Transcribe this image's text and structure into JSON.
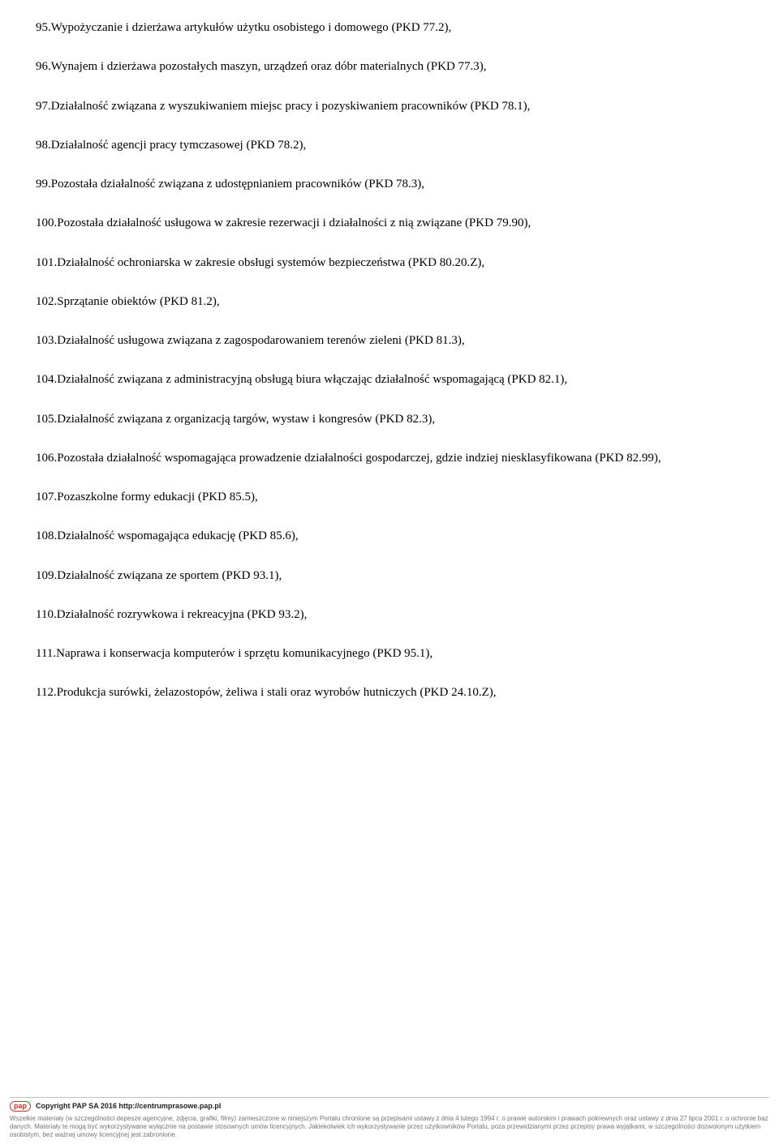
{
  "items": [
    "95.Wypożyczanie i dzierżawa artykułów użytku osobistego i domowego (PKD 77.2),",
    "96.Wynajem i dzierżawa pozostałych maszyn, urządzeń oraz dóbr materialnych (PKD 77.3),",
    "97.Działalność związana z wyszukiwaniem miejsc pracy i pozyskiwaniem pracowników (PKD 78.1),",
    "98.Działalność agencji pracy tymczasowej (PKD 78.2),",
    "99.Pozostała działalność związana z udostępnianiem pracowników (PKD 78.3),",
    "100.Pozostała działalność usługowa w zakresie rezerwacji i działalności z nią związane (PKD 79.90),",
    "101.Działalność ochroniarska w zakresie obsługi systemów bezpieczeństwa (PKD 80.20.Z),",
    "102.Sprzątanie obiektów (PKD 81.2),",
    "103.Działalność usługowa związana z zagospodarowaniem terenów zieleni (PKD 81.3),",
    "104.Działalność związana z administracyjną obsługą biura włączając działalność wspomagającą (PKD 82.1),",
    "105.Działalność związana z organizacją targów, wystaw i kongresów (PKD 82.3),",
    "106.Pozostała działalność wspomagająca prowadzenie działalności gospodarczej, gdzie indziej niesklasyfikowana (PKD 82.99),",
    "107.Pozaszkolne formy edukacji (PKD 85.5),",
    "108.Działalność wspomagająca edukację (PKD 85.6),",
    "109.Działalność związana ze sportem (PKD 93.1),",
    "110.Działalność rozrywkowa i rekreacyjna (PKD 93.2),",
    "111.Naprawa i konserwacja komputerów i sprzętu komunikacyjnego (PKD 95.1),",
    "112.Produkcja surówki, żelazostopów, żeliwa i stali oraz wyrobów hutniczych (PKD 24.10.Z),"
  ],
  "footer": {
    "logo": "pap",
    "copyright": "Copyright PAP SA 2016 http://centrumprasowe.pap.pl",
    "disclaimer": "Wszelkie materiały (w szczególności depesze agencyjne, zdjęcia, grafiki, filmy) zamieszczone w niniejszym Portalu chronione są przepisami ustawy z dnia 4 lutego 1994 r. o prawie autorskim i prawach pokrewnych oraz ustawy z dnia 27 lipca 2001 r. o ochronie baz danych. Materiały te mogą być wykorzystywane wyłącznie na postawie stosownych umów licencyjnych. Jakiekolwiek ich wykorzystywanie przez użytkowników Portalu, poza przewidzianymi przez przepisy prawa wyjątkami, w szczególności dozwolonym użytkiem osobistym, bez ważnej umowy licencyjnej jest zabronione."
  }
}
